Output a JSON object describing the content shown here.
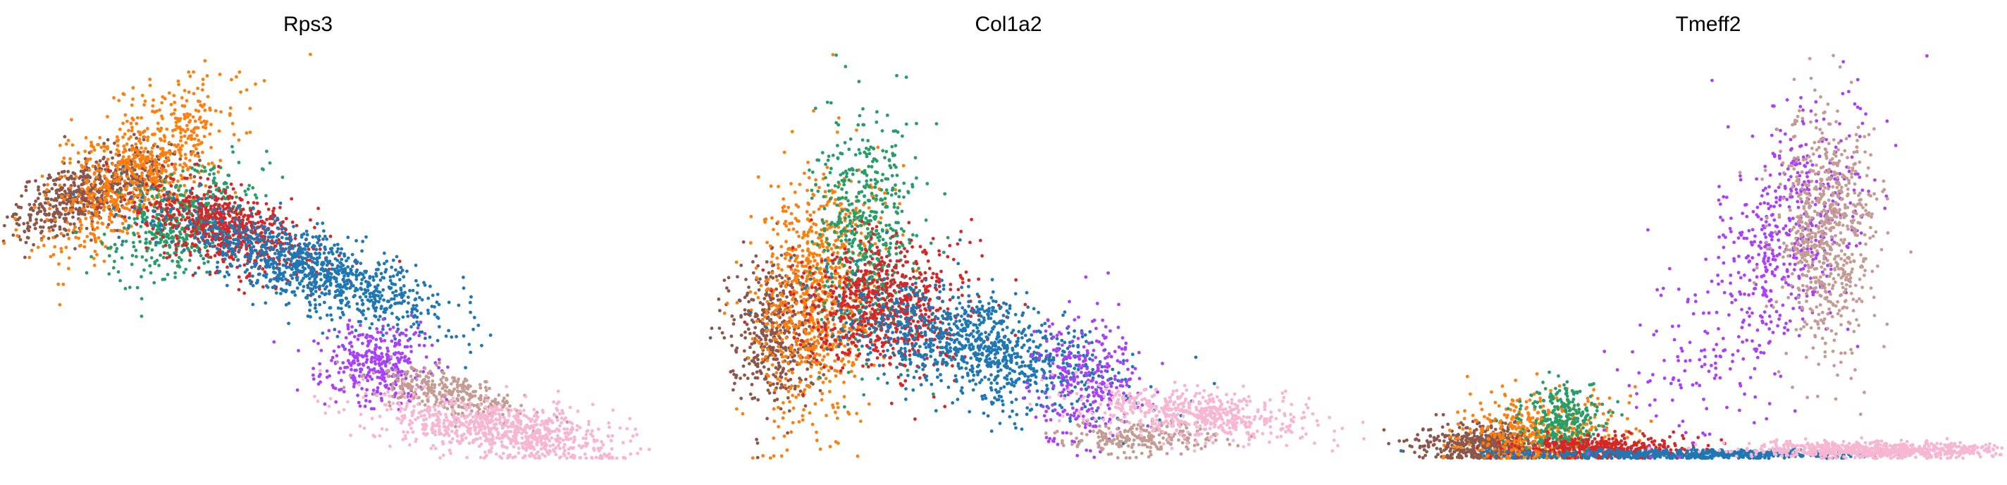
{
  "chart_data": [
    {
      "type": "scatter",
      "title": "Rps3",
      "xlim": [
        0,
        10
      ],
      "ylim": [
        0,
        10
      ],
      "series": [
        {
          "color": "#8c564b",
          "clusters": [
            {
              "cx": 1.0,
              "cy": 6.6,
              "sx": 0.35,
              "sy": 0.9,
              "n": 650,
              "rot": -55
            }
          ]
        },
        {
          "color": "#ff7f0e",
          "clusters": [
            {
              "cx": 1.9,
              "cy": 7.2,
              "sx": 0.55,
              "sy": 1.2,
              "n": 750,
              "rot": -35
            }
          ]
        },
        {
          "color": "#279e68",
          "clusters": [
            {
              "cx": 2.7,
              "cy": 5.9,
              "sx": 0.45,
              "sy": 0.8,
              "n": 450,
              "rot": -40
            }
          ]
        },
        {
          "color": "#d62728",
          "clusters": [
            {
              "cx": 3.5,
              "cy": 5.7,
              "sx": 0.85,
              "sy": 0.45,
              "n": 700,
              "rot": -32
            }
          ]
        },
        {
          "color": "#1f77b4",
          "clusters": [
            {
              "cx": 5.0,
              "cy": 4.7,
              "sx": 1.4,
              "sy": 0.4,
              "n": 1000,
              "rot": -28
            }
          ]
        },
        {
          "color": "#aa40fc",
          "clusters": [
            {
              "cx": 6.2,
              "cy": 2.3,
              "sx": 0.5,
              "sy": 0.5,
              "n": 350,
              "rot": -40
            }
          ]
        },
        {
          "color": "#c49c94",
          "clusters": [
            {
              "cx": 7.5,
              "cy": 1.6,
              "sx": 0.7,
              "sy": 0.25,
              "n": 300,
              "rot": -20
            }
          ]
        },
        {
          "color": "#f7b6d2",
          "clusters": [
            {
              "cx": 8.5,
              "cy": 0.7,
              "sx": 1.1,
              "sy": 0.35,
              "n": 800,
              "rot": -12
            }
          ]
        }
      ]
    },
    {
      "type": "scatter",
      "title": "Col1a2",
      "xlim": [
        0,
        10
      ],
      "ylim": [
        0,
        10
      ],
      "series": [
        {
          "color": "#8c564b",
          "clusters": [
            {
              "cx": 0.6,
              "cy": 3.2,
              "sx": 0.4,
              "sy": 0.9,
              "n": 450,
              "rot": 0
            }
          ]
        },
        {
          "color": "#ff7f0e",
          "clusters": [
            {
              "cx": 1.4,
              "cy": 4.0,
              "sx": 0.55,
              "sy": 1.6,
              "n": 850,
              "rot": -5
            }
          ]
        },
        {
          "color": "#279e68",
          "clusters": [
            {
              "cx": 2.3,
              "cy": 5.6,
              "sx": 0.45,
              "sy": 1.4,
              "n": 550,
              "rot": 0
            }
          ]
        },
        {
          "color": "#d62728",
          "clusters": [
            {
              "cx": 2.7,
              "cy": 3.8,
              "sx": 0.75,
              "sy": 0.8,
              "n": 750,
              "rot": -20
            }
          ]
        },
        {
          "color": "#1f77b4",
          "clusters": [
            {
              "cx": 4.4,
              "cy": 2.7,
              "sx": 1.3,
              "sy": 0.6,
              "n": 1000,
              "rot": -25
            }
          ]
        },
        {
          "color": "#aa40fc",
          "clusters": [
            {
              "cx": 6.3,
              "cy": 2.0,
              "sx": 0.5,
              "sy": 0.8,
              "n": 300,
              "rot": 0
            }
          ]
        },
        {
          "color": "#c49c94",
          "clusters": [
            {
              "cx": 7.3,
              "cy": 0.5,
              "sx": 0.7,
              "sy": 0.2,
              "n": 250,
              "rot": 0
            }
          ]
        },
        {
          "color": "#f7b6d2",
          "clusters": [
            {
              "cx": 8.4,
              "cy": 1.1,
              "sx": 1.0,
              "sy": 0.3,
              "n": 550,
              "rot": -8
            }
          ]
        }
      ]
    },
    {
      "type": "scatter",
      "title": "Tmeff2",
      "xlim": [
        0,
        10
      ],
      "ylim": [
        0,
        10
      ],
      "series": [
        {
          "color": "#8c564b",
          "clusters": [
            {
              "cx": 0.9,
              "cy": 0.35,
              "sx": 0.6,
              "sy": 0.25,
              "n": 500,
              "rot": 0
            }
          ]
        },
        {
          "color": "#ff7f0e",
          "clusters": [
            {
              "cx": 1.9,
              "cy": 0.6,
              "sx": 0.7,
              "sy": 0.5,
              "n": 500,
              "rot": 0
            }
          ]
        },
        {
          "color": "#279e68",
          "clusters": [
            {
              "cx": 2.3,
              "cy": 0.9,
              "sx": 0.35,
              "sy": 0.45,
              "n": 300,
              "rot": 0
            }
          ]
        },
        {
          "color": "#d62728",
          "clusters": [
            {
              "cx": 3.0,
              "cy": 0.25,
              "sx": 0.8,
              "sy": 0.15,
              "n": 400,
              "rot": 0
            }
          ]
        },
        {
          "color": "#1f77b4",
          "clusters": [
            {
              "cx": 4.8,
              "cy": 0.1,
              "sx": 1.5,
              "sy": 0.06,
              "n": 550,
              "rot": 0
            }
          ]
        },
        {
          "color": "#aa40fc",
          "clusters": [
            {
              "cx": 6.3,
              "cy": 5.6,
              "sx": 0.65,
              "sy": 1.6,
              "n": 500,
              "rot": -15
            },
            {
              "cx": 4.9,
              "cy": 2.5,
              "sx": 0.7,
              "sy": 1.3,
              "n": 130,
              "rot": -30
            }
          ]
        },
        {
          "color": "#c49c94",
          "clusters": [
            {
              "cx": 7.1,
              "cy": 5.6,
              "sx": 0.45,
              "sy": 1.5,
              "n": 700,
              "rot": 0
            }
          ]
        },
        {
          "color": "#f7b6d2",
          "clusters": [
            {
              "cx": 8.1,
              "cy": 0.2,
              "sx": 1.2,
              "sy": 0.1,
              "n": 700,
              "rot": 0
            }
          ]
        }
      ]
    }
  ]
}
